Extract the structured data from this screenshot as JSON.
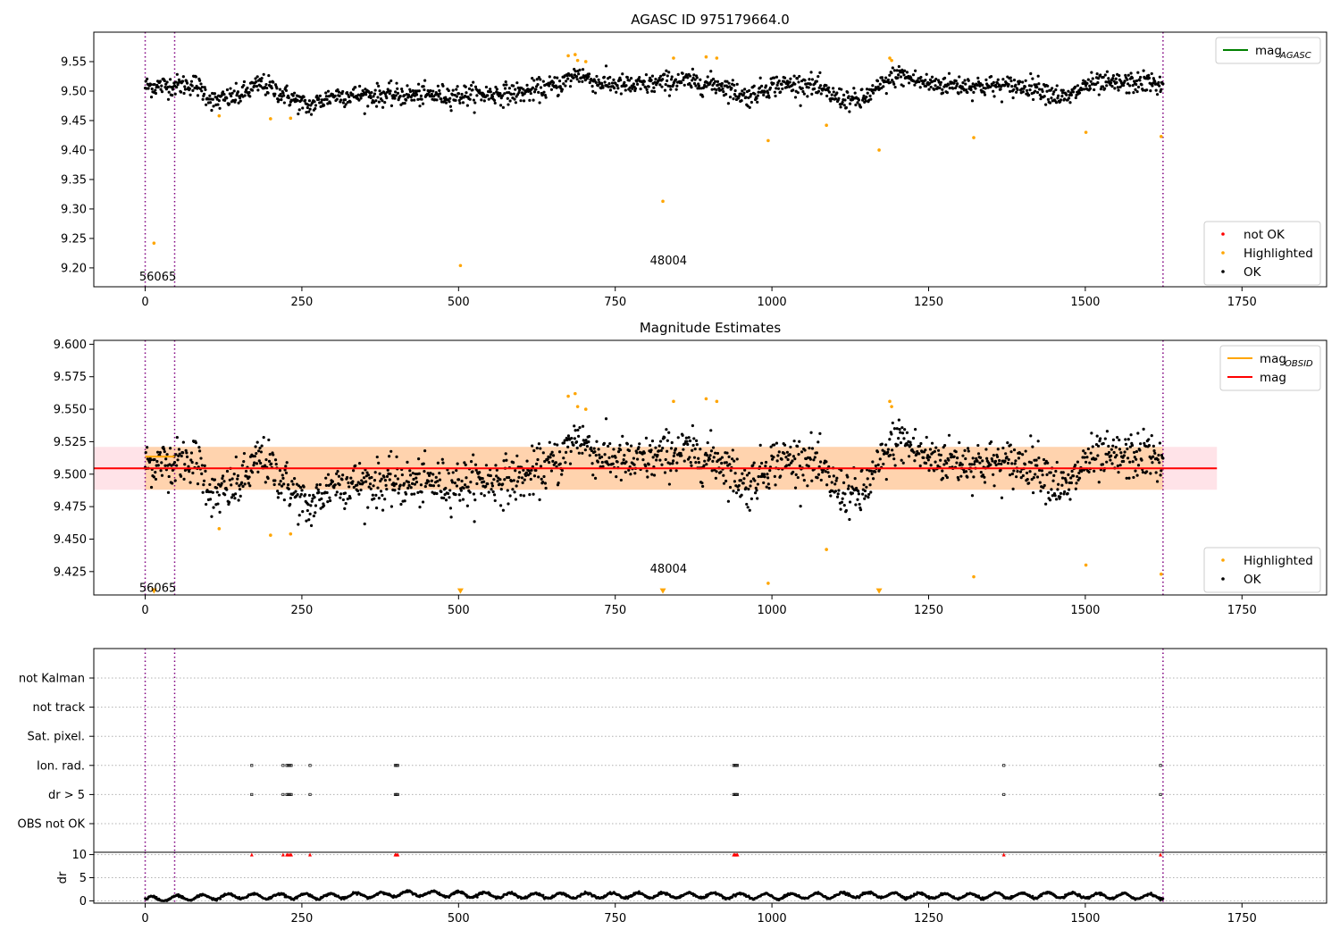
{
  "chart_data": [
    {
      "type": "scatter",
      "title": "AGASC ID 975179664.0",
      "xlim": [
        -82,
        1885
      ],
      "ylim": [
        9.168,
        9.6
      ],
      "xticks": [
        0,
        250,
        500,
        750,
        1000,
        1250,
        1500,
        1750
      ],
      "yticks": [
        9.2,
        9.25,
        9.3,
        9.35,
        9.4,
        9.45,
        9.5,
        9.55
      ],
      "vlines": [
        0,
        47,
        1624
      ],
      "annotations": [
        {
          "text": "56065",
          "x": 20,
          "y": 9.185
        },
        {
          "text": "48004",
          "x": 835,
          "y": 9.212
        }
      ],
      "legend_upper": [
        {
          "label": "mag",
          "subscript": "AGASC",
          "color": "#008000",
          "marker": "line"
        }
      ],
      "legend_lower": [
        {
          "label": "not OK",
          "color": "#ff0000",
          "marker": "dot"
        },
        {
          "label": "Highlighted",
          "color": "#ffa500",
          "marker": "dot"
        },
        {
          "label": "OK",
          "color": "#000000",
          "marker": "dot"
        }
      ],
      "series": [
        {
          "name": "OK",
          "color": "#000000",
          "x_range": [
            0,
            1624
          ],
          "n_points": 1624,
          "baseline": [
            [
              0,
              9.508
            ],
            [
              50,
              9.51
            ],
            [
              80,
              9.512
            ],
            [
              110,
              9.482
            ],
            [
              150,
              9.492
            ],
            [
              185,
              9.513
            ],
            [
              230,
              9.49
            ],
            [
              260,
              9.473
            ],
            [
              300,
              9.493
            ],
            [
              500,
              9.493
            ],
            [
              600,
              9.497
            ],
            [
              660,
              9.51
            ],
            [
              690,
              9.53
            ],
            [
              720,
              9.515
            ],
            [
              780,
              9.508
            ],
            [
              850,
              9.518
            ],
            [
              920,
              9.51
            ],
            [
              960,
              9.49
            ],
            [
              1000,
              9.51
            ],
            [
              1060,
              9.512
            ],
            [
              1100,
              9.49
            ],
            [
              1140,
              9.482
            ],
            [
              1200,
              9.528
            ],
            [
              1250,
              9.512
            ],
            [
              1350,
              9.508
            ],
            [
              1420,
              9.508
            ],
            [
              1470,
              9.486
            ],
            [
              1500,
              9.51
            ],
            [
              1600,
              9.515
            ],
            [
              1624,
              9.51
            ]
          ],
          "scatter": 0.012
        },
        {
          "name": "Highlighted",
          "color": "#ffa500",
          "points": [
            [
              14,
              9.242
            ],
            [
              118,
              9.458
            ],
            [
              200,
              9.453
            ],
            [
              232,
              9.454
            ],
            [
              503,
              9.204
            ],
            [
              675,
              9.56
            ],
            [
              686,
              9.562
            ],
            [
              690,
              9.552
            ],
            [
              703,
              9.55
            ],
            [
              826,
              9.313
            ],
            [
              843,
              9.556
            ],
            [
              895,
              9.558
            ],
            [
              912,
              9.556
            ],
            [
              994,
              9.416
            ],
            [
              1087,
              9.442
            ],
            [
              1171,
              9.4
            ],
            [
              1188,
              9.556
            ],
            [
              1191,
              9.552
            ],
            [
              1322,
              9.421
            ],
            [
              1501,
              9.43
            ],
            [
              1621,
              9.423
            ]
          ]
        }
      ]
    },
    {
      "type": "scatter",
      "title": "Magnitude Estimates",
      "xlim": [
        -82,
        1885
      ],
      "ylim": [
        9.407,
        9.603
      ],
      "xticks": [
        0,
        250,
        500,
        750,
        1000,
        1250,
        1500,
        1750
      ],
      "yticks": [
        9.425,
        9.45,
        9.475,
        9.5,
        9.525,
        9.55,
        9.575,
        9.6
      ],
      "vlines": [
        0,
        47,
        1624
      ],
      "annotations": [
        {
          "text": "56065",
          "x": 20,
          "y": 9.412
        },
        {
          "text": "48004",
          "x": 835,
          "y": 9.427
        }
      ],
      "bands": [
        {
          "x": [
            -82,
            1710
          ],
          "y": [
            9.488,
            9.521
          ],
          "color": "#ffc0cb",
          "opacity": 0.45
        },
        {
          "x": [
            0,
            1624
          ],
          "y": [
            9.488,
            9.521
          ],
          "color": "#ffa500",
          "opacity": 0.25
        }
      ],
      "lines": [
        {
          "name": "mag",
          "color": "#ff0000",
          "x": [
            -82,
            1710
          ],
          "y": [
            9.5045,
            9.5045
          ]
        },
        {
          "name": "mag_OBSID",
          "color": "#ffa500",
          "x": [
            0,
            47
          ],
          "y": [
            9.5135,
            9.5135
          ]
        }
      ],
      "legend_upper": [
        {
          "label": "mag",
          "subscript": "OBSID",
          "color": "#ffa500",
          "marker": "line"
        },
        {
          "label": "mag",
          "subscript": "",
          "color": "#ff0000",
          "marker": "line"
        }
      ],
      "legend_lower": [
        {
          "label": "Highlighted",
          "color": "#ffa500",
          "marker": "dot"
        },
        {
          "label": "OK",
          "color": "#000000",
          "marker": "dot"
        }
      ],
      "series": [
        {
          "name": "OK",
          "color": "#000000",
          "x_range": [
            0,
            1624
          ],
          "n_points": 1624,
          "baseline": [
            [
              0,
              9.508
            ],
            [
              50,
              9.51
            ],
            [
              80,
              9.512
            ],
            [
              110,
              9.482
            ],
            [
              150,
              9.492
            ],
            [
              185,
              9.513
            ],
            [
              230,
              9.49
            ],
            [
              260,
              9.473
            ],
            [
              300,
              9.493
            ],
            [
              500,
              9.493
            ],
            [
              600,
              9.497
            ],
            [
              660,
              9.51
            ],
            [
              690,
              9.53
            ],
            [
              720,
              9.515
            ],
            [
              780,
              9.508
            ],
            [
              850,
              9.518
            ],
            [
              920,
              9.51
            ],
            [
              960,
              9.49
            ],
            [
              1000,
              9.51
            ],
            [
              1060,
              9.512
            ],
            [
              1100,
              9.49
            ],
            [
              1140,
              9.482
            ],
            [
              1200,
              9.528
            ],
            [
              1250,
              9.512
            ],
            [
              1350,
              9.508
            ],
            [
              1420,
              9.508
            ],
            [
              1470,
              9.486
            ],
            [
              1500,
              9.51
            ],
            [
              1600,
              9.515
            ],
            [
              1624,
              9.51
            ]
          ],
          "scatter": 0.012
        },
        {
          "name": "Highlighted",
          "color": "#ffa500",
          "points": [
            [
              118,
              9.458
            ],
            [
              200,
              9.453
            ],
            [
              232,
              9.454
            ],
            [
              675,
              9.56
            ],
            [
              686,
              9.562
            ],
            [
              690,
              9.552
            ],
            [
              703,
              9.55
            ],
            [
              843,
              9.556
            ],
            [
              895,
              9.558
            ],
            [
              912,
              9.556
            ],
            [
              994,
              9.416
            ],
            [
              1087,
              9.442
            ],
            [
              1188,
              9.556
            ],
            [
              1191,
              9.552
            ],
            [
              1322,
              9.421
            ],
            [
              1501,
              9.43
            ],
            [
              1621,
              9.423
            ]
          ]
        },
        {
          "name": "Highlighted (below range)",
          "color": "#ffa500",
          "marker": "triangle-down",
          "points": [
            [
              14,
              9.41
            ],
            [
              503,
              9.41
            ],
            [
              826,
              9.41
            ],
            [
              1171,
              9.41
            ]
          ]
        }
      ]
    },
    {
      "type": "scatter",
      "title": "",
      "xlim": [
        -82,
        1885
      ],
      "xticks": [
        0,
        250,
        500,
        750,
        1000,
        1250,
        1500,
        1750
      ],
      "vlines": [
        0,
        47,
        1624
      ],
      "flag_rows": [
        "not Kalman",
        "not track",
        "Sat. pixel.",
        "Ion. rad.",
        "dr > 5",
        "OBS not OK"
      ],
      "flags": {
        "Ion. rad.": [
          170,
          220,
          226,
          228,
          231,
          233,
          263,
          399,
          401,
          403,
          939,
          941,
          943,
          945,
          1370,
          1620
        ],
        "dr > 5": [
          170,
          220,
          226,
          228,
          231,
          233,
          263,
          399,
          401,
          403,
          939,
          941,
          943,
          945,
          1370,
          1620
        ]
      },
      "dr_panel": {
        "ylabel": "dr",
        "ylim": [
          -0.5,
          10.5
        ],
        "yticks": [
          0,
          5,
          10
        ],
        "series": [
          {
            "name": "dr",
            "color": "#000000",
            "x_range": [
              0,
              1624
            ],
            "baseline": [
              [
                0,
                0.3
              ],
              [
                50,
                0.6
              ],
              [
                150,
                1.0
              ],
              [
                300,
                1.0
              ],
              [
                440,
                1.6
              ],
              [
                600,
                1.1
              ],
              [
                900,
                1.2
              ],
              [
                1000,
                0.9
              ],
              [
                1150,
                1.3
              ],
              [
                1300,
                1.0
              ],
              [
                1450,
                1.2
              ],
              [
                1624,
                0.9
              ]
            ]
          },
          {
            "name": "dr > 5",
            "color": "#ff0000",
            "marker": "triangle-up",
            "points": [
              [
                170,
                10
              ],
              [
                220,
                10
              ],
              [
                226,
                10
              ],
              [
                228,
                10
              ],
              [
                231,
                10
              ],
              [
                233,
                10
              ],
              [
                263,
                10
              ],
              [
                399,
                10
              ],
              [
                401,
                10
              ],
              [
                403,
                10
              ],
              [
                939,
                10
              ],
              [
                941,
                10
              ],
              [
                943,
                10
              ],
              [
                945,
                10
              ],
              [
                1370,
                10
              ],
              [
                1620,
                10
              ]
            ]
          }
        ]
      }
    }
  ]
}
